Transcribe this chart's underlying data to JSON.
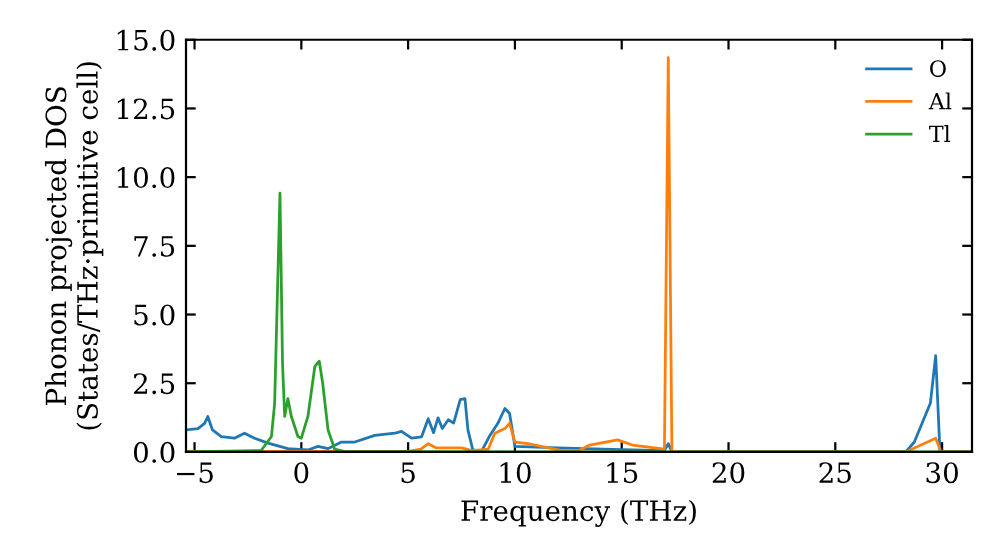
{
  "chart_data": {
    "type": "line",
    "xlabel": "Frequency (THz)",
    "ylabel": "Phonon projected DOS\n(States/THz·primitive cell)",
    "xlim": [
      -5.4,
      31.4
    ],
    "ylim": [
      0,
      15
    ],
    "xticks": [
      {
        "value": -5,
        "label": "−5"
      },
      0,
      5,
      10,
      15,
      20,
      25,
      30
    ],
    "yticks": [
      {
        "value": 0,
        "label": "0.0"
      },
      2.5,
      {
        "value": 5,
        "label": "5.0"
      },
      7.5,
      {
        "value": 10,
        "label": "10.0"
      },
      12.5,
      {
        "value": 15,
        "label": "15.0"
      }
    ],
    "legend": "top right",
    "grid": false,
    "series": [
      {
        "name": "O",
        "color": "#1f77b4",
        "x": [
          -5.4,
          -4.84,
          -4.53,
          -4.38,
          -4.16,
          -3.75,
          -3.13,
          -2.66,
          -2.19,
          -1.56,
          -0.63,
          0.31,
          0.78,
          1.25,
          1.88,
          2.5,
          3.44,
          4.38,
          4.69,
          5.16,
          5.63,
          5.94,
          6.19,
          6.4,
          6.6,
          6.88,
          7.13,
          7.44,
          7.66,
          7.8,
          8.03,
          8.44,
          8.8,
          9.2,
          9.53,
          9.75,
          10.0,
          12.0,
          15.0,
          17.0,
          17.18,
          17.35,
          20.0,
          25.0,
          28.3,
          28.7,
          29.45,
          29.7,
          29.9,
          31.4
        ],
        "values": [
          0.8,
          0.85,
          1.04,
          1.29,
          0.8,
          0.56,
          0.5,
          0.68,
          0.5,
          0.32,
          0.12,
          0.07,
          0.2,
          0.12,
          0.36,
          0.36,
          0.6,
          0.68,
          0.75,
          0.5,
          0.55,
          1.21,
          0.7,
          1.24,
          0.85,
          1.17,
          1.05,
          1.9,
          1.94,
          0.8,
          0.07,
          0.03,
          0.56,
          1.04,
          1.58,
          1.4,
          0.2,
          0.15,
          0.08,
          0.05,
          0.3,
          0.0,
          0.0,
          0.0,
          0.0,
          0.36,
          1.77,
          3.5,
          0.0,
          0.0
        ]
      },
      {
        "name": "Al",
        "color": "#ff7f0e",
        "x": [
          -5.4,
          5.0,
          5.6,
          5.94,
          6.3,
          6.9,
          7.5,
          8.0,
          8.75,
          9.06,
          9.53,
          9.75,
          10.0,
          10.6,
          12.2,
          13.0,
          13.5,
          14.8,
          15.5,
          17.0,
          17.18,
          17.35,
          20.0,
          28.3,
          29.7,
          29.95,
          31.4
        ],
        "values": [
          0.02,
          0.02,
          0.1,
          0.3,
          0.15,
          0.15,
          0.15,
          0.05,
          0.1,
          0.68,
          0.85,
          1.04,
          0.36,
          0.3,
          0.05,
          0.05,
          0.25,
          0.44,
          0.25,
          0.1,
          14.35,
          0.0,
          0.0,
          0.0,
          0.5,
          0.0,
          0.0
        ]
      },
      {
        "name": "Tl",
        "color": "#2ca02c",
        "x": [
          -5.4,
          -1.88,
          -1.4,
          -1.25,
          -1.0,
          -0.88,
          -0.78,
          -0.63,
          -0.47,
          -0.16,
          0.0,
          0.31,
          0.63,
          0.84,
          1.0,
          1.25,
          1.56,
          2.0,
          10.0,
          31.4
        ],
        "values": [
          0.0,
          0.05,
          0.56,
          1.77,
          9.42,
          3.2,
          1.29,
          1.94,
          1.3,
          0.56,
          0.5,
          1.3,
          3.1,
          3.3,
          2.5,
          0.8,
          0.1,
          0.02,
          0.0,
          0.0
        ]
      }
    ]
  }
}
